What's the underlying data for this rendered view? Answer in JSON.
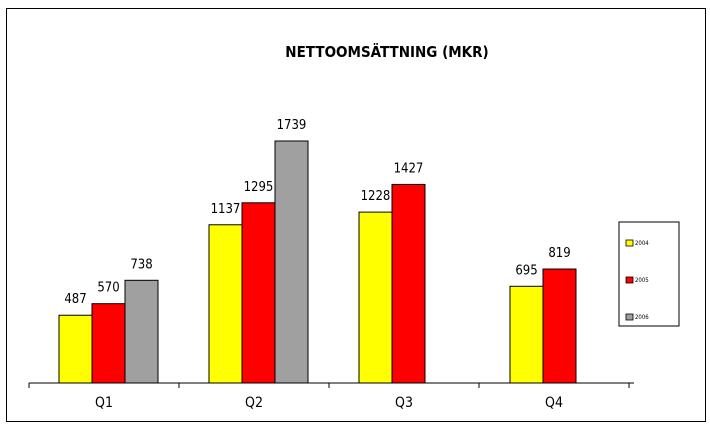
{
  "chart_data": {
    "type": "bar",
    "title": "NETTOOMSÄTTNING (MKR)",
    "xlabel": "",
    "ylabel": "",
    "categories": [
      "Q1",
      "Q2",
      "Q3",
      "Q4"
    ],
    "ylim": [
      0,
      1900
    ],
    "grid": false,
    "legend_position": "right",
    "series": [
      {
        "name": "2004",
        "color": "#ffff00",
        "values": [
          487,
          1137,
          1228,
          695
        ],
        "labels": [
          "487",
          "1137",
          "1228",
          "695"
        ]
      },
      {
        "name": "2005",
        "color": "#ff0000",
        "values": [
          570,
          1295,
          1427,
          819
        ],
        "labels": [
          "570",
          "1295",
          "1427",
          "819"
        ]
      },
      {
        "name": "2006",
        "color": "#a0a0a0",
        "values": [
          738,
          1739,
          null,
          null
        ],
        "labels": [
          "738",
          "1739",
          "",
          ""
        ]
      }
    ]
  }
}
